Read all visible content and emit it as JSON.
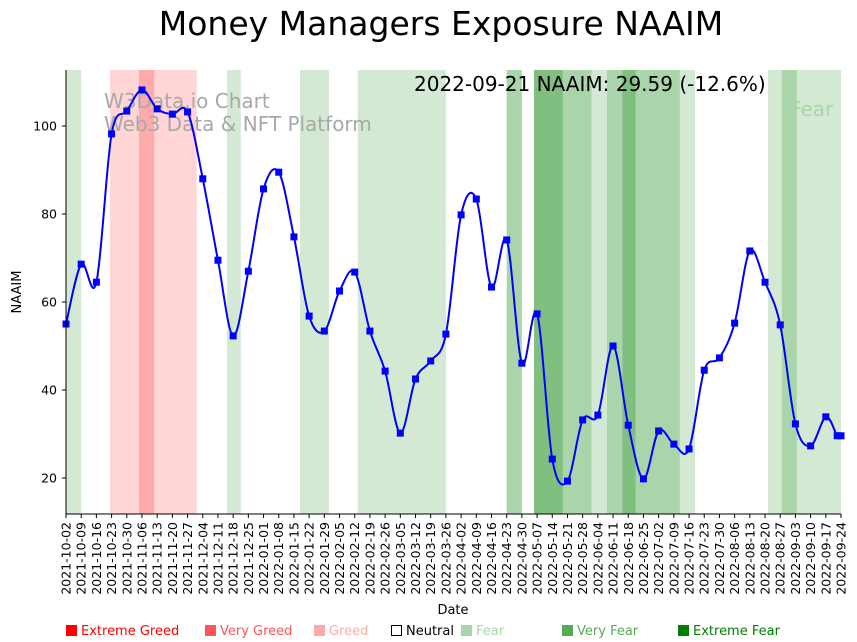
{
  "chart_data": {
    "type": "line",
    "title": "Money Managers Exposure NAAIM",
    "xlabel": "Date",
    "ylabel": "NAAIM",
    "ylim": [
      12,
      113
    ],
    "yticks": [
      20,
      40,
      60,
      80,
      100
    ],
    "grid": false,
    "annotation": "2022-09-21 NAAIM: 29.59 (-12.6%)",
    "annotation_faint": "Fear",
    "watermark": [
      "W3Data.io Chart",
      "Web3 Data & NFT Platform"
    ],
    "xtick_labels": [
      "2021-10-02",
      "2021-10-09",
      "2021-10-16",
      "2021-10-23",
      "2021-10-30",
      "2021-11-06",
      "2021-11-13",
      "2021-11-20",
      "2021-11-27",
      "2021-12-04",
      "2021-12-11",
      "2021-12-18",
      "2021-12-25",
      "2022-01-01",
      "2022-01-08",
      "2022-01-15",
      "2022-01-22",
      "2022-01-29",
      "2022-02-05",
      "2022-02-12",
      "2022-02-19",
      "2022-02-26",
      "2022-03-05",
      "2022-03-12",
      "2022-03-19",
      "2022-03-26",
      "2022-04-02",
      "2022-04-09",
      "2022-04-16",
      "2022-04-23",
      "2022-04-30",
      "2022-05-07",
      "2022-05-14",
      "2022-05-21",
      "2022-05-28",
      "2022-06-04",
      "2022-06-11",
      "2022-06-18",
      "2022-06-25",
      "2022-07-02",
      "2022-07-09",
      "2022-07-16",
      "2022-07-23",
      "2022-07-30",
      "2022-08-06",
      "2022-08-13",
      "2022-08-20",
      "2022-08-27",
      "2022-09-03",
      "2022-09-10",
      "2022-09-17",
      "2022-09-24"
    ],
    "series": [
      {
        "name": "NAAIM",
        "color": "#0000ff",
        "x": [
          0,
          1,
          2,
          3,
          4,
          5,
          6,
          7,
          8,
          9,
          10,
          11,
          12,
          13,
          14,
          15,
          16,
          17,
          18,
          19,
          20,
          21,
          22,
          23,
          24,
          25,
          26,
          27,
          28,
          29,
          30,
          31,
          32,
          33,
          34,
          35,
          36,
          37,
          38,
          39,
          40,
          41,
          42,
          43,
          44,
          45,
          46,
          47,
          48,
          49,
          50,
          50.75,
          51
        ],
        "values": [
          55.0,
          68.6,
          64.5,
          98.2,
          103.4,
          108.2,
          103.9,
          102.7,
          103.2,
          88.0,
          69.5,
          52.3,
          67.0,
          85.7,
          89.5,
          74.8,
          56.8,
          53.4,
          62.5,
          66.8,
          53.4,
          44.3,
          30.2,
          42.5,
          46.6,
          52.7,
          79.8,
          83.4,
          63.4,
          74.1,
          46.1,
          57.3,
          24.3,
          19.3,
          33.2,
          34.3,
          50.0,
          32.0,
          19.8,
          30.7,
          27.7,
          26.6,
          44.5,
          47.3,
          55.2,
          71.6,
          64.5,
          54.8,
          32.3,
          27.3,
          33.9,
          29.6,
          29.59
        ]
      }
    ],
    "bands": [
      {
        "from": 0,
        "to": 1,
        "level": "Fear"
      },
      {
        "from": 2.9,
        "to": 8.6,
        "level": "Greed"
      },
      {
        "from": 4.8,
        "to": 5.8,
        "level": "Very Greed"
      },
      {
        "from": 10.6,
        "to": 11.5,
        "level": "Fear"
      },
      {
        "from": 15.4,
        "to": 17.3,
        "level": "Fear"
      },
      {
        "from": 19.2,
        "to": 25,
        "level": "Fear"
      },
      {
        "from": 29,
        "to": 30,
        "level": "Very Fear"
      },
      {
        "from": 30.8,
        "to": 32.7,
        "level": "Extreme Fear"
      },
      {
        "from": 32.7,
        "to": 34.6,
        "level": "Very Fear"
      },
      {
        "from": 34.6,
        "to": 35.6,
        "level": "Fear"
      },
      {
        "from": 35.6,
        "to": 36.6,
        "level": "Very Fear"
      },
      {
        "from": 36.6,
        "to": 37.5,
        "level": "Extreme Fear"
      },
      {
        "from": 37.5,
        "to": 40.4,
        "level": "Very Fear"
      },
      {
        "from": 40.4,
        "to": 41.4,
        "level": "Fear"
      },
      {
        "from": 46.2,
        "to": 47.1,
        "level": "Fear"
      },
      {
        "from": 47.1,
        "to": 48.1,
        "level": "Very Fear"
      },
      {
        "from": 48.1,
        "to": 51,
        "level": "Fear"
      }
    ],
    "band_colors": {
      "Greed": "#ffd5d5",
      "Very Greed": "#ffaaaa",
      "Fear": "#d4e9d4",
      "Very Fear": "#aad4aa",
      "Extreme Fear": "#80bf80"
    },
    "legend": [
      {
        "label": "Extreme Greed",
        "color": "#ff0000"
      },
      {
        "label": "Very Greed",
        "color": "#ff5555"
      },
      {
        "label": "Greed",
        "color": "#ffaaaa"
      },
      {
        "label": "Neutral",
        "color": "#000000"
      },
      {
        "label": "Fear",
        "color": "#aad4aa"
      },
      {
        "label": "Very Fear",
        "color": "#55aa55"
      },
      {
        "label": "Extreme Fear",
        "color": "#008000"
      }
    ],
    "legend_placement": "bottom"
  }
}
